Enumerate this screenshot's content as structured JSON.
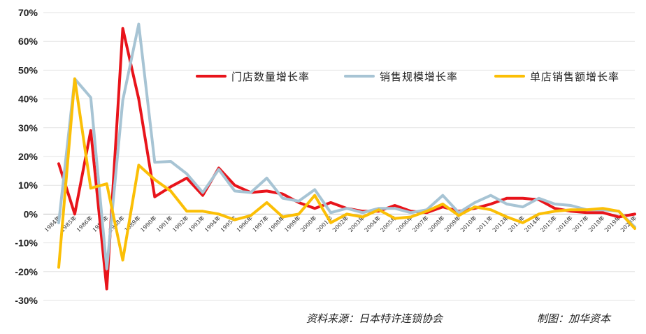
{
  "chart_data": {
    "type": "line",
    "x": [
      "1984年",
      "1985年",
      "1986年",
      "1987年",
      "1988年",
      "1989年",
      "1990年",
      "1991年",
      "1992年",
      "1993年",
      "1994年",
      "1995年",
      "1996年",
      "1997年",
      "1998年",
      "1999年",
      "2000年",
      "2001年",
      "2002年",
      "2003年",
      "2004年",
      "2005年",
      "2006年",
      "2007年",
      "2008年",
      "2009年",
      "2010年",
      "2011年",
      "2012年",
      "2013年",
      "2014年",
      "2015年",
      "2016年",
      "2017年",
      "2018年",
      "2019年",
      "2020年"
    ],
    "ylim": [
      -30,
      70
    ],
    "yticks": [
      -30,
      -20,
      -10,
      0,
      10,
      20,
      30,
      40,
      50,
      60,
      70
    ],
    "ytick_labels": [
      "-30%",
      "-20%",
      "-10%",
      "0%",
      "10%",
      "20%",
      "30%",
      "40%",
      "50%",
      "60%",
      "70%"
    ],
    "grid": true,
    "legend_position": "top-right",
    "series": [
      {
        "name": "门店数量增长率",
        "color": "#e8141b",
        "values": [
          17.5,
          0,
          29,
          -26,
          64.5,
          40,
          6,
          9.5,
          12.5,
          6.5,
          16,
          10,
          7.5,
          8,
          7,
          4,
          2,
          4,
          2,
          1,
          1,
          3,
          1,
          0.5,
          2.5,
          1,
          2,
          3.5,
          5.5,
          5.5,
          5,
          2,
          1,
          0.5,
          0.5,
          -1,
          0
        ]
      },
      {
        "name": "销售规模增长率",
        "color": "#a7c4d4",
        "values": [
          -3,
          47,
          40.5,
          -19,
          39.5,
          66,
          18,
          18.3,
          14,
          7.5,
          15.5,
          8,
          7.5,
          12.5,
          5.5,
          4.5,
          8.5,
          0.5,
          2,
          0.5,
          2,
          2,
          0.5,
          1.5,
          6.5,
          0.5,
          4,
          6.5,
          3.5,
          2.5,
          5.5,
          3.5,
          3,
          1.5,
          1.5,
          1,
          -4.5
        ]
      },
      {
        "name": "单店销售额增长率",
        "color": "#fbbf06",
        "values": [
          -18.5,
          47,
          9,
          10.5,
          -16,
          17,
          12,
          8,
          1,
          1,
          0,
          -2,
          -0.5,
          4,
          -1,
          0,
          6.5,
          -3,
          0,
          -1,
          1.5,
          -1.5,
          -1,
          1,
          3.5,
          -0.5,
          2.5,
          1.5,
          -1,
          -3,
          0,
          1,
          1.5,
          1.5,
          2,
          1,
          -5
        ]
      }
    ]
  },
  "source_note": "资料来源：日本特许连锁协会",
  "credit_note": "制图：加华资本"
}
